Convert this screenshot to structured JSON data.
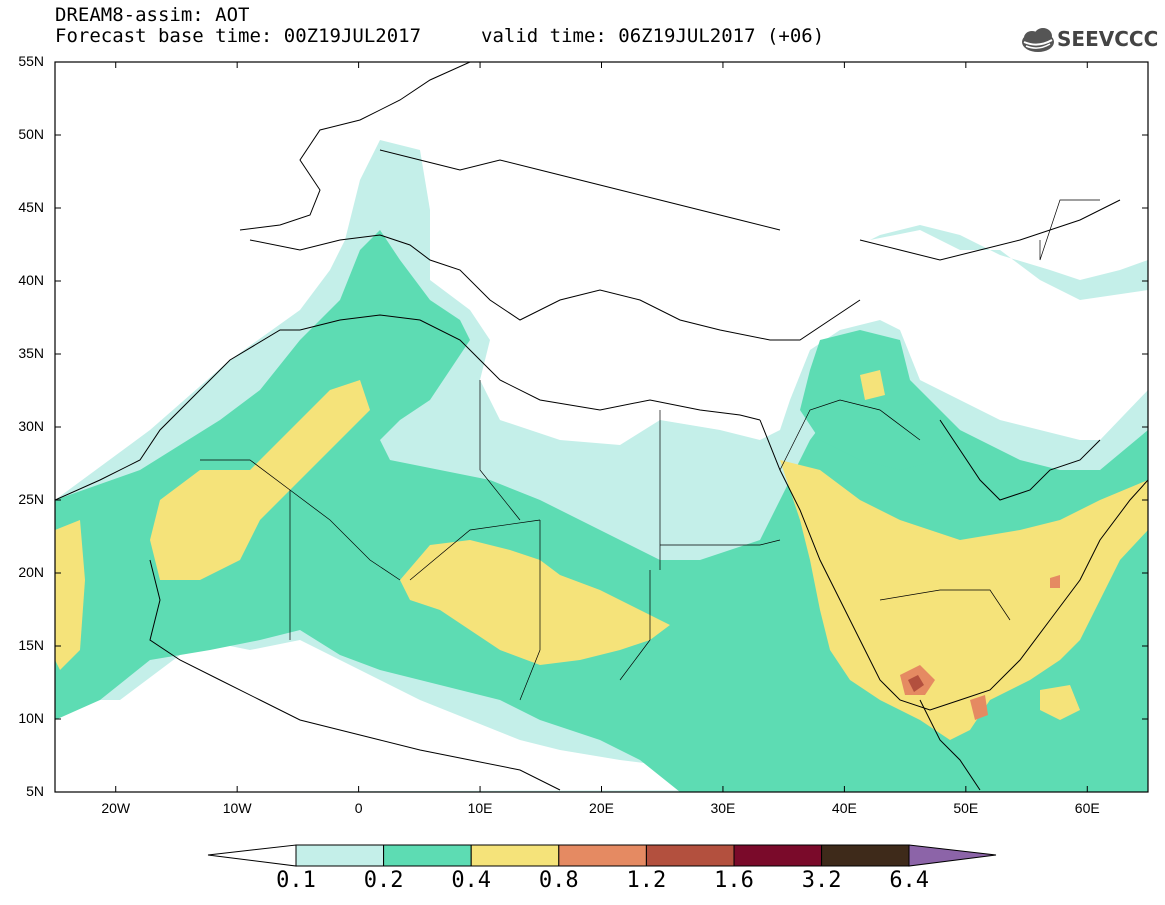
{
  "header": {
    "line1": "DREAM8-assim: AOT",
    "line2": "Forecast base time: 00Z19JUL2017",
    "valid": "valid time: 06Z19JUL2017 (+06)",
    "logo": "SEEVCCC"
  },
  "axes": {
    "lat_labels": [
      "55N",
      "50N",
      "45N",
      "40N",
      "35N",
      "30N",
      "25N",
      "20N",
      "15N",
      "10N",
      "5N"
    ],
    "lat_values": [
      55,
      50,
      45,
      40,
      35,
      30,
      25,
      20,
      15,
      10,
      5
    ],
    "lon_labels": [
      "20W",
      "10W",
      "0",
      "10E",
      "20E",
      "30E",
      "40E",
      "50E",
      "60E"
    ],
    "lon_values": [
      -20,
      -10,
      0,
      10,
      20,
      30,
      40,
      50,
      60
    ],
    "lon_range": [
      -25,
      65
    ],
    "lat_range": [
      5,
      55
    ]
  },
  "colorbar": {
    "labels": [
      "0.1",
      "0.2",
      "0.4",
      "0.8",
      "1.2",
      "1.6",
      "3.2",
      "6.4"
    ],
    "colors": [
      "#ffffff",
      "#c4efe9",
      "#5ddcb3",
      "#f5e37a",
      "#e58a62",
      "#b3503e",
      "#7a0a2a",
      "#3e2a1a",
      "#8c64a8"
    ]
  },
  "colors": {
    "light": "#c4efe9",
    "green": "#5ddcb3",
    "yellow": "#f5e37a",
    "orange": "#e58a62",
    "brown": "#b3503e"
  }
}
